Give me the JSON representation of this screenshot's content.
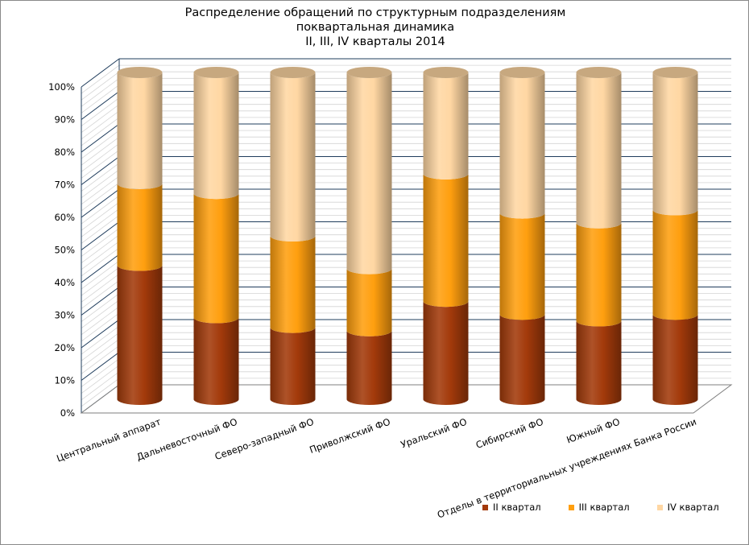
{
  "chart_data": {
    "type": "bar",
    "stacked": true,
    "style": "3d-cylinder",
    "title_lines": [
      "Распределение обращений по структурным подразделениям",
      "поквартальная динамика",
      "II, III, IV кварталы 2014"
    ],
    "categories": [
      "Центральный аппарат",
      "Дальневосточный ФО",
      "Северо-западный ФО",
      "Приволжский ФО",
      "Уральский ФО",
      "Сибирский ФО",
      "Южный ФО",
      "Отделы в территориальных учреждениях Банка России"
    ],
    "series": [
      {
        "name": "II квартал",
        "color": "#A33A0B",
        "values": [
          41,
          25,
          22,
          21,
          30,
          26,
          24,
          26
        ]
      },
      {
        "name": "III квартал",
        "color": "#FF9F0F",
        "values": [
          25,
          38,
          28,
          19,
          39,
          31,
          30,
          32
        ]
      },
      {
        "name": "IV квартал",
        "color": "#FFD7A3",
        "values": [
          34,
          37,
          50,
          60,
          31,
          43,
          46,
          42
        ]
      }
    ],
    "yticks": [
      "0%",
      "10%",
      "20%",
      "30%",
      "40%",
      "50%",
      "60%",
      "70%",
      "80%",
      "90%",
      "100%"
    ],
    "ylim": [
      0,
      100
    ],
    "grid": true,
    "legend_position": "bottom-right"
  }
}
